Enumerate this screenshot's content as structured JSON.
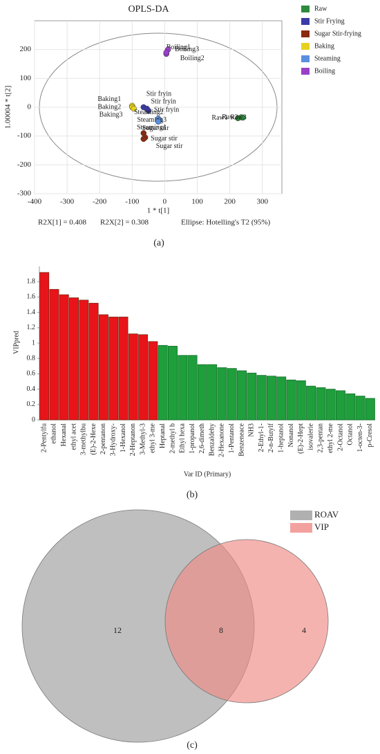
{
  "chart_data": [
    {
      "type": "scatter",
      "title": "OPLS-DA",
      "x_label": "1 * t[1]",
      "y_label": "1.00004 * t[2]",
      "xlim": [
        -400,
        360
      ],
      "xticks": [
        -400,
        -300,
        -200,
        -100,
        0,
        100,
        200,
        300
      ],
      "ylim": [
        -300,
        300
      ],
      "yticks": [
        -300,
        -200,
        -100,
        0,
        100,
        200
      ],
      "grid": true,
      "legend": "right",
      "annotations": [
        "R2X[1] = 0.408",
        "R2X[2] = 0.308",
        "Ellipse: Hotelling's T2 (95%)"
      ],
      "caption": "(a)",
      "series": [
        {
          "name": "Raw",
          "color": "#2e8b3e",
          "x": [
            225,
            235,
            240
          ],
          "values": [
            -38,
            -35,
            -36
          ],
          "labels": [
            "Raw1",
            "Raw2",
            "Raw3"
          ]
        },
        {
          "name": "Stir Frying",
          "color": "#3a3aa8",
          "x": [
            -65,
            -55,
            -50
          ],
          "values": [
            0,
            -5,
            -12
          ],
          "labels": [
            "Stir fryin",
            "Stir fryin",
            "Stir fryin"
          ]
        },
        {
          "name": "Sugar Stir-frying",
          "color": "#8b2a10",
          "x": [
            -65,
            -60,
            -65
          ],
          "values": [
            -90,
            -105,
            -110
          ],
          "labels": [
            "Sugar stir",
            "Sugar stir",
            "Sugar stir"
          ]
        },
        {
          "name": "Baking",
          "color": "#e6d21e",
          "x": [
            -100,
            -100,
            -95
          ],
          "values": [
            5,
            0,
            -5
          ],
          "labels": [
            "Baking1",
            "Baking2",
            "Baking3"
          ]
        },
        {
          "name": "Steaming",
          "color": "#5a8ee0",
          "x": [
            -20,
            -15,
            -20
          ],
          "values": [
            -40,
            -45,
            -50
          ],
          "labels": [
            "Steaming2",
            "Steaming3",
            "Steaming1"
          ]
        },
        {
          "name": "Boiling",
          "color": "#9a3fc8",
          "x": [
            5,
            10,
            5
          ],
          "values": [
            185,
            200,
            190
          ],
          "labels": [
            "Boiling1",
            "Boiling3",
            "Boiling2"
          ]
        }
      ]
    },
    {
      "type": "bar",
      "x_label": "Var ID (Primary)",
      "y_label": "VIPpred",
      "caption": "(b)",
      "ylim": [
        0,
        2
      ],
      "yticks": [
        0,
        0.2,
        0.4,
        0.6,
        0.8,
        1,
        1.2,
        1.4,
        1.6,
        1.8
      ],
      "categories": [
        "2-Pentylfu",
        "ethanol",
        "Hexanal",
        "ethyl acet",
        "3-methylbu",
        "(E)-2-Hexe",
        "2-pentanon",
        "3-Hydroxy-",
        "1-Hexanol",
        "2-Heptanon",
        "3-Methyl-3",
        "ethyl 3-me",
        "Heptanal",
        "2-methyl b",
        "Ethyl hexa",
        "1-propanol",
        "2,6-dimeth",
        "Benzaldehy",
        "2-Hexanone",
        "1-Pentanol",
        "Benzeneace",
        "NH3",
        "2-Ethyl-1-",
        "2-n-Butylf",
        "1-heptanol",
        "Nonanol",
        "(E)-2-Hept",
        "isovalerie",
        "2,3-pentan",
        "ethyl 2-me",
        "2-Octanol",
        "Octanol",
        "1-octen-3-",
        "p-Cresol"
      ],
      "values": [
        1.92,
        1.7,
        1.63,
        1.59,
        1.56,
        1.52,
        1.37,
        1.34,
        1.34,
        1.12,
        1.11,
        1.02,
        0.97,
        0.96,
        0.84,
        0.84,
        0.72,
        0.72,
        0.68,
        0.67,
        0.64,
        0.61,
        0.58,
        0.57,
        0.56,
        0.52,
        0.51,
        0.44,
        0.42,
        0.4,
        0.38,
        0.34,
        0.31,
        0.28
      ],
      "colors": [
        "#e8141a",
        "#e8141a",
        "#e8141a",
        "#e8141a",
        "#e8141a",
        "#e8141a",
        "#e8141a",
        "#e8141a",
        "#e8141a",
        "#e8141a",
        "#e8141a",
        "#e8141a",
        "#1f9e3c",
        "#1f9e3c",
        "#1f9e3c",
        "#1f9e3c",
        "#1f9e3c",
        "#1f9e3c",
        "#1f9e3c",
        "#1f9e3c",
        "#1f9e3c",
        "#1f9e3c",
        "#1f9e3c",
        "#1f9e3c",
        "#1f9e3c",
        "#1f9e3c",
        "#1f9e3c",
        "#1f9e3c",
        "#1f9e3c",
        "#1f9e3c",
        "#1f9e3c",
        "#1f9e3c",
        "#1f9e3c",
        "#1f9e3c"
      ]
    },
    {
      "type": "venn",
      "caption": "(c)",
      "sets": [
        {
          "name": "ROAV",
          "color": "#9c9c9c"
        },
        {
          "name": "VIP",
          "color": "#f08a86"
        }
      ],
      "values": [
        12,
        8,
        4
      ]
    }
  ]
}
